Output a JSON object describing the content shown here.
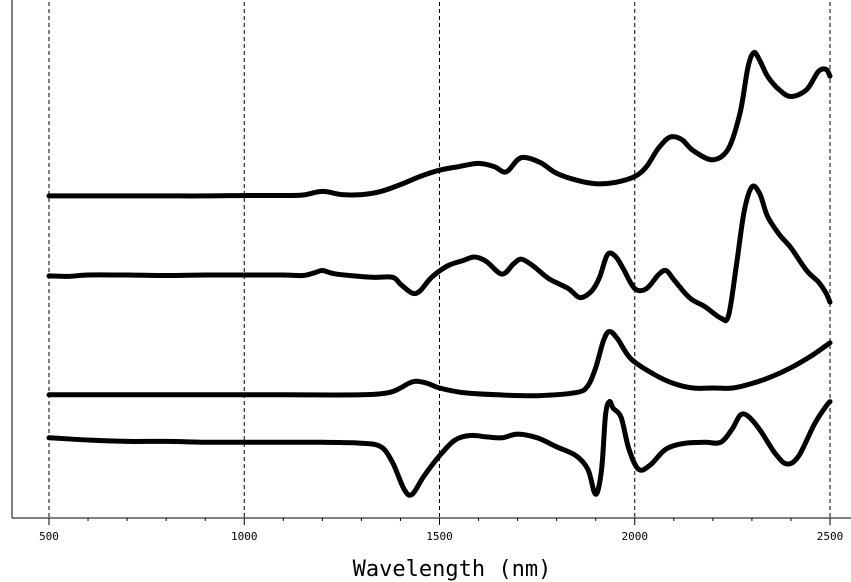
{
  "chart_data": {
    "type": "line",
    "title": "",
    "xlabel": "Wavelength (nm)",
    "ylabel": "",
    "xlim": [
      450,
      2510
    ],
    "ylim": [
      0,
      10
    ],
    "grid": "vertical-dashed",
    "legend": "none",
    "line_color": "#000000",
    "x_ticks": [
      500,
      1000,
      1500,
      2000,
      2500
    ],
    "x_tick_labels": [
      "500",
      "1000",
      "1500",
      "2000",
      "2500"
    ],
    "series": [
      {
        "points": [
          [
            500,
            6.55
          ],
          [
            600,
            6.55
          ],
          [
            700,
            6.55
          ],
          [
            800,
            6.55
          ],
          [
            900,
            6.55
          ],
          [
            1000,
            6.56
          ],
          [
            1100,
            6.56
          ],
          [
            1150,
            6.57
          ],
          [
            1200,
            6.65
          ],
          [
            1250,
            6.58
          ],
          [
            1300,
            6.58
          ],
          [
            1350,
            6.65
          ],
          [
            1400,
            6.8
          ],
          [
            1450,
            6.98
          ],
          [
            1500,
            7.12
          ],
          [
            1550,
            7.2
          ],
          [
            1600,
            7.27
          ],
          [
            1640,
            7.2
          ],
          [
            1670,
            7.08
          ],
          [
            1700,
            7.35
          ],
          [
            1720,
            7.4
          ],
          [
            1760,
            7.28
          ],
          [
            1800,
            7.05
          ],
          [
            1850,
            6.9
          ],
          [
            1900,
            6.82
          ],
          [
            1950,
            6.85
          ],
          [
            2000,
            6.98
          ],
          [
            2030,
            7.2
          ],
          [
            2060,
            7.6
          ],
          [
            2090,
            7.85
          ],
          [
            2120,
            7.8
          ],
          [
            2150,
            7.55
          ],
          [
            2200,
            7.35
          ],
          [
            2240,
            7.6
          ],
          [
            2270,
            8.4
          ],
          [
            2290,
            9.4
          ],
          [
            2305,
            9.72
          ],
          [
            2320,
            9.55
          ],
          [
            2340,
            9.2
          ],
          [
            2370,
            8.9
          ],
          [
            2400,
            8.75
          ],
          [
            2440,
            8.9
          ],
          [
            2470,
            9.3
          ],
          [
            2490,
            9.35
          ],
          [
            2500,
            9.2
          ]
        ]
      },
      {
        "points": [
          [
            500,
            4.78
          ],
          [
            550,
            4.77
          ],
          [
            600,
            4.8
          ],
          [
            700,
            4.8
          ],
          [
            800,
            4.79
          ],
          [
            900,
            4.8
          ],
          [
            1000,
            4.8
          ],
          [
            1100,
            4.8
          ],
          [
            1150,
            4.79
          ],
          [
            1180,
            4.85
          ],
          [
            1200,
            4.9
          ],
          [
            1230,
            4.83
          ],
          [
            1280,
            4.78
          ],
          [
            1330,
            4.75
          ],
          [
            1380,
            4.75
          ],
          [
            1400,
            4.6
          ],
          [
            1430,
            4.4
          ],
          [
            1450,
            4.45
          ],
          [
            1480,
            4.75
          ],
          [
            1520,
            5.0
          ],
          [
            1560,
            5.12
          ],
          [
            1590,
            5.2
          ],
          [
            1620,
            5.1
          ],
          [
            1660,
            4.82
          ],
          [
            1690,
            5.05
          ],
          [
            1710,
            5.15
          ],
          [
            1740,
            5.0
          ],
          [
            1780,
            4.72
          ],
          [
            1830,
            4.5
          ],
          [
            1860,
            4.3
          ],
          [
            1890,
            4.45
          ],
          [
            1910,
            4.75
          ],
          [
            1930,
            5.25
          ],
          [
            1950,
            5.22
          ],
          [
            1970,
            4.95
          ],
          [
            2000,
            4.5
          ],
          [
            2030,
            4.5
          ],
          [
            2060,
            4.8
          ],
          [
            2080,
            4.9
          ],
          [
            2100,
            4.7
          ],
          [
            2140,
            4.3
          ],
          [
            2180,
            4.1
          ],
          [
            2220,
            3.85
          ],
          [
            2240,
            3.9
          ],
          [
            2260,
            5.0
          ],
          [
            2280,
            6.2
          ],
          [
            2300,
            6.75
          ],
          [
            2320,
            6.6
          ],
          [
            2340,
            6.1
          ],
          [
            2370,
            5.7
          ],
          [
            2400,
            5.4
          ],
          [
            2440,
            4.9
          ],
          [
            2470,
            4.65
          ],
          [
            2490,
            4.4
          ],
          [
            2500,
            4.2
          ]
        ]
      },
      {
        "points": [
          [
            500,
            2.15
          ],
          [
            700,
            2.15
          ],
          [
            900,
            2.15
          ],
          [
            1100,
            2.15
          ],
          [
            1300,
            2.15
          ],
          [
            1370,
            2.2
          ],
          [
            1400,
            2.3
          ],
          [
            1420,
            2.4
          ],
          [
            1440,
            2.45
          ],
          [
            1470,
            2.4
          ],
          [
            1500,
            2.3
          ],
          [
            1560,
            2.2
          ],
          [
            1650,
            2.15
          ],
          [
            1750,
            2.13
          ],
          [
            1850,
            2.2
          ],
          [
            1880,
            2.35
          ],
          [
            1900,
            2.75
          ],
          [
            1920,
            3.35
          ],
          [
            1935,
            3.55
          ],
          [
            1955,
            3.4
          ],
          [
            1990,
            2.95
          ],
          [
            2050,
            2.6
          ],
          [
            2100,
            2.4
          ],
          [
            2150,
            2.3
          ],
          [
            2200,
            2.3
          ],
          [
            2250,
            2.3
          ],
          [
            2300,
            2.4
          ],
          [
            2350,
            2.55
          ],
          [
            2400,
            2.75
          ],
          [
            2450,
            3.0
          ],
          [
            2500,
            3.3
          ]
        ]
      },
      {
        "points": [
          [
            500,
            1.2
          ],
          [
            600,
            1.15
          ],
          [
            700,
            1.12
          ],
          [
            800,
            1.12
          ],
          [
            900,
            1.1
          ],
          [
            1000,
            1.1
          ],
          [
            1100,
            1.1
          ],
          [
            1200,
            1.1
          ],
          [
            1300,
            1.08
          ],
          [
            1350,
            1.0
          ],
          [
            1380,
            0.65
          ],
          [
            1410,
            0.05
          ],
          [
            1430,
            -0.05
          ],
          [
            1460,
            0.35
          ],
          [
            1500,
            0.8
          ],
          [
            1540,
            1.15
          ],
          [
            1580,
            1.25
          ],
          [
            1620,
            1.22
          ],
          [
            1660,
            1.2
          ],
          [
            1700,
            1.28
          ],
          [
            1750,
            1.2
          ],
          [
            1800,
            1.0
          ],
          [
            1850,
            0.8
          ],
          [
            1880,
            0.5
          ],
          [
            1900,
            -0.05
          ],
          [
            1915,
            0.5
          ],
          [
            1925,
            1.7
          ],
          [
            1935,
            2.0
          ],
          [
            1945,
            1.85
          ],
          [
            1965,
            1.65
          ],
          [
            1985,
            0.95
          ],
          [
            2010,
            0.5
          ],
          [
            2040,
            0.6
          ],
          [
            2080,
            0.95
          ],
          [
            2130,
            1.08
          ],
          [
            2180,
            1.1
          ],
          [
            2220,
            1.1
          ],
          [
            2250,
            1.4
          ],
          [
            2270,
            1.7
          ],
          [
            2290,
            1.68
          ],
          [
            2320,
            1.38
          ],
          [
            2360,
            0.85
          ],
          [
            2390,
            0.62
          ],
          [
            2420,
            0.8
          ],
          [
            2460,
            1.5
          ],
          [
            2490,
            1.9
          ],
          [
            2500,
            2.0
          ]
        ]
      }
    ]
  }
}
